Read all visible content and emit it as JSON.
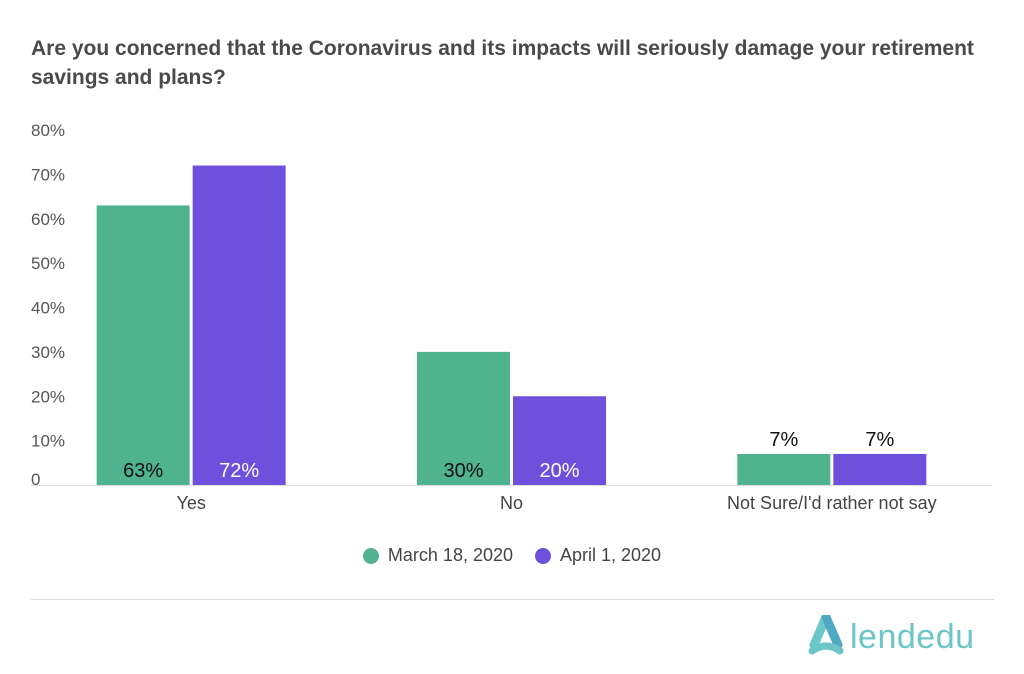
{
  "chart_data": {
    "type": "bar",
    "title": "Are you concerned that the Coronavirus and its impacts will seriously damage your retirement savings and plans?",
    "categories": [
      "Yes",
      "No",
      "Not Sure/I'd rather not say"
    ],
    "series": [
      {
        "name": "March 18, 2020",
        "values": [
          63,
          30,
          7
        ],
        "color": "#4fb38f",
        "labels": [
          "63%",
          "30%",
          "7%"
        ]
      },
      {
        "name": "April 1, 2020",
        "values": [
          72,
          20,
          7
        ],
        "color": "#6d50dc",
        "labels": [
          "72%",
          "20%",
          "7%"
        ]
      }
    ],
    "ylim": [
      0,
      80
    ],
    "yticks": [
      0,
      10,
      20,
      30,
      40,
      50,
      60,
      70,
      80
    ],
    "ytick_labels": [
      "0",
      "10%",
      "20%",
      "30%",
      "40%",
      "50%",
      "60%",
      "70%",
      "80%"
    ],
    "xlabel": "",
    "ylabel": "",
    "grid": false,
    "legend_position": "bottom"
  },
  "branding": {
    "logo_text": "lendedu",
    "logo_color": "#6cc5c6"
  }
}
